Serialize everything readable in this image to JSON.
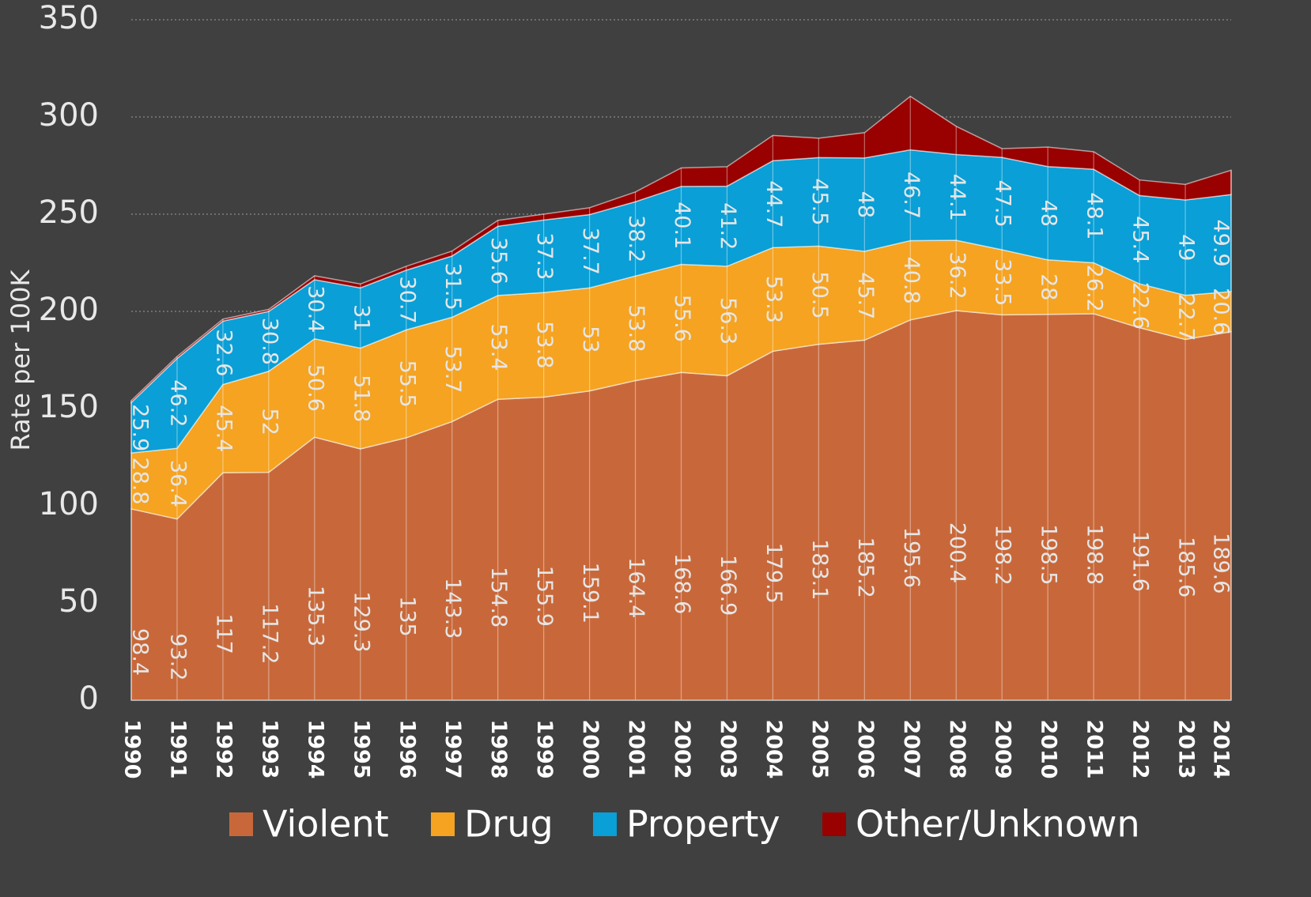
{
  "chart_data": {
    "type": "stacked_area",
    "y_label": "Rate per 100K",
    "categories": [
      "1990",
      "1991",
      "1992",
      "1993",
      "1994",
      "1995",
      "1996",
      "1997",
      "1998",
      "1999",
      "2000",
      "2001",
      "2002",
      "2003",
      "2004",
      "2005",
      "2006",
      "2007",
      "2008",
      "2009",
      "2010",
      "2011",
      "2012",
      "2013",
      "2014"
    ],
    "series": [
      {
        "name": "Violent",
        "color": "#c8683a",
        "values": [
          98.4,
          93.2,
          117,
          117.2,
          135.3,
          129.3,
          135,
          143.3,
          154.8,
          155.9,
          159.1,
          164.4,
          168.6,
          166.9,
          179.5,
          183.1,
          185.2,
          195.6,
          200.4,
          198.2,
          198.5,
          198.8,
          191.6,
          185.6,
          189.6
        ]
      },
      {
        "name": "Drug",
        "color": "#f5a321",
        "values": [
          28.8,
          36.4,
          45.4,
          52,
          50.6,
          51.8,
          55.5,
          53.7,
          53.4,
          53.8,
          53,
          53.8,
          55.6,
          56.3,
          53.3,
          50.5,
          45.7,
          40.8,
          36.2,
          33.5,
          28,
          26.2,
          22.6,
          22.7,
          20.6
        ]
      },
      {
        "name": "Property",
        "color": "#0a9fd6",
        "values": [
          25.9,
          46.2,
          32.6,
          30.8,
          30.4,
          31,
          30.7,
          31.5,
          35.6,
          37.3,
          37.7,
          38.2,
          40.1,
          41.2,
          44.7,
          45.5,
          48,
          46.7,
          44.1,
          47.5,
          48,
          48.1,
          45.4,
          49,
          49.9
        ]
      },
      {
        "name": "Other/Unknown",
        "color": "#990000",
        "values": [
          1,
          1,
          1,
          1,
          2,
          2,
          2,
          2.5,
          3,
          3,
          3.5,
          5,
          9.5,
          10,
          13,
          10,
          13,
          27.5,
          14.5,
          4.5,
          10,
          9,
          8,
          8,
          12.5
        ]
      }
    ],
    "labeled_series": [
      0,
      1,
      2
    ],
    "ylim": [
      0,
      350
    ],
    "yticks": [
      0,
      50,
      100,
      150,
      200,
      250,
      300,
      350
    ],
    "grid": true,
    "legend": "bottom"
  }
}
